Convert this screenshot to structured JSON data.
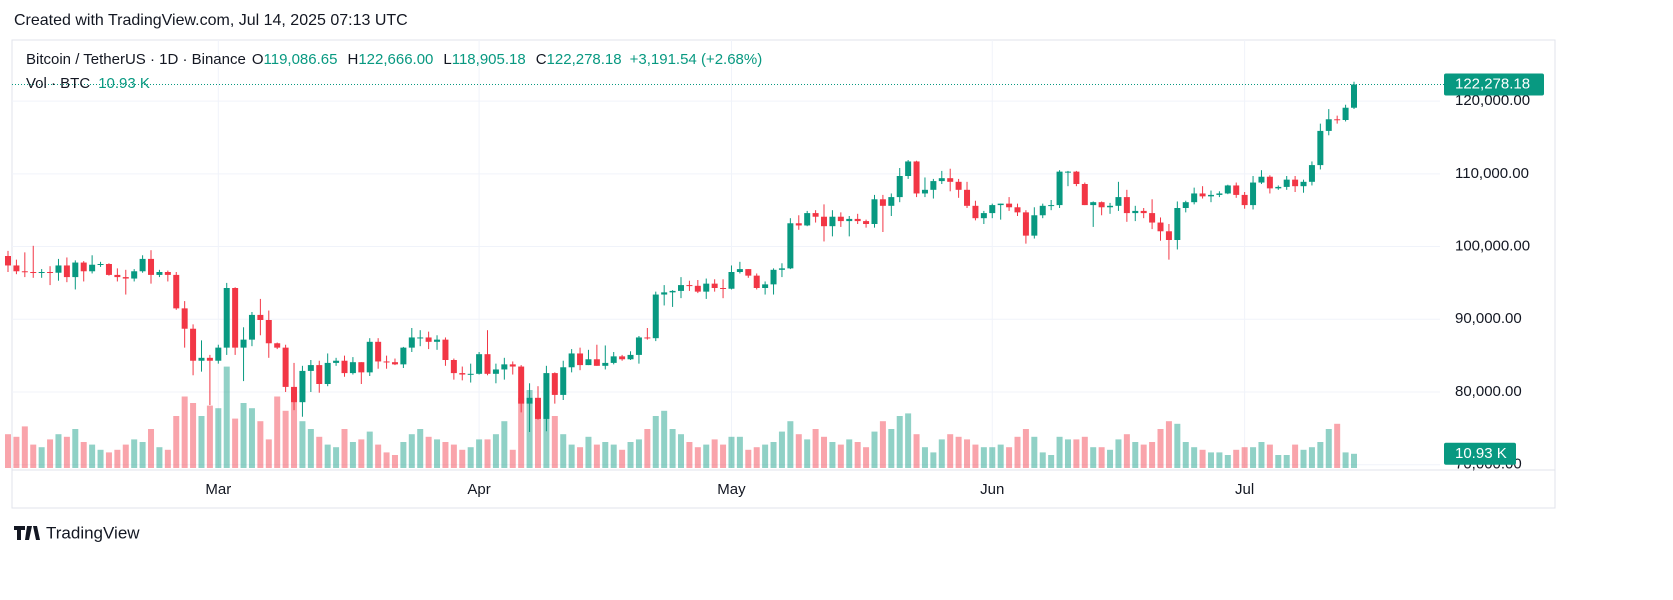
{
  "watermark": "Created with TradingView.com, Jul 14, 2025 07:13 UTC",
  "footer": "TradingView",
  "chart_data": {
    "type": "candlestick",
    "symbol": "Bitcoin / TetherUS · 1D · Binance",
    "ohlc_keys": [
      "O",
      "H",
      "L",
      "C"
    ],
    "last_candle_labels": [
      "119,086.65",
      "122,666.00",
      "118,905.18",
      "122,278.18"
    ],
    "change_label": "+3,191.54 (+2.68%)",
    "volume_title": "Vol · BTC",
    "volume_label": "10.93 K",
    "close_label": "122,278.18",
    "up_color": "#089981",
    "down_color": "#f23645",
    "ylim": [
      69550,
      128400
    ],
    "yticks": [
      {
        "value": 70000,
        "label": "70,000.00"
      },
      {
        "value": 80000,
        "label": "80,000.00"
      },
      {
        "value": 90000,
        "label": "90,000.00"
      },
      {
        "value": 100000,
        "label": "100,000.00"
      },
      {
        "value": 110000,
        "label": "110,000.00"
      },
      {
        "value": 120000,
        "label": "120,000.00"
      }
    ],
    "xticks": [
      {
        "value": 25,
        "label": "Mar"
      },
      {
        "value": 56,
        "label": "Apr"
      },
      {
        "value": 86,
        "label": "May"
      },
      {
        "value": 117,
        "label": "Jun"
      },
      {
        "value": 147,
        "label": "Jul"
      }
    ],
    "grid": true,
    "volume_lim": [
      0,
      100000
    ],
    "candles": [
      [
        98700,
        99400,
        96500,
        97400
      ],
      [
        97400,
        98200,
        96200,
        96600
      ],
      [
        96600,
        99200,
        95800,
        96500
      ],
      [
        96500,
        100100,
        95700,
        96400
      ],
      [
        96400,
        96900,
        95700,
        96500
      ],
      [
        96500,
        97300,
        94700,
        96400
      ],
      [
        96400,
        98300,
        95300,
        97400
      ],
      [
        97400,
        98500,
        95100,
        95800
      ],
      [
        95800,
        98100,
        94100,
        97800
      ],
      [
        97800,
        98000,
        95200,
        96600
      ],
      [
        96600,
        98800,
        96300,
        97500
      ],
      [
        97500,
        97900,
        97200,
        97600
      ],
      [
        97600,
        97700,
        96000,
        96100
      ],
      [
        96100,
        97000,
        95200,
        95800
      ],
      [
        95800,
        96800,
        93400,
        95600
      ],
      [
        95600,
        96900,
        95200,
        96600
      ],
      [
        96600,
        98800,
        96400,
        98300
      ],
      [
        98300,
        99500,
        94900,
        96100
      ],
      [
        96100,
        96800,
        95800,
        96500
      ],
      [
        96500,
        96700,
        95200,
        96100
      ],
      [
        96100,
        96500,
        91300,
        91500
      ],
      [
        91500,
        92500,
        86100,
        88700
      ],
      [
        88700,
        89300,
        82300,
        84300
      ],
      [
        84300,
        87100,
        82800,
        84700
      ],
      [
        84700,
        85100,
        78200,
        84300
      ],
      [
        84300,
        86500,
        83900,
        86100
      ],
      [
        86100,
        95000,
        85100,
        94300
      ],
      [
        94300,
        94400,
        85100,
        86100
      ],
      [
        86100,
        88900,
        81500,
        87200
      ],
      [
        87200,
        91000,
        86300,
        90600
      ],
      [
        90600,
        92800,
        87800,
        89900
      ],
      [
        89900,
        91200,
        84700,
        86700
      ],
      [
        86700,
        86800,
        85900,
        86100
      ],
      [
        86100,
        86500,
        80000,
        80700
      ],
      [
        80700,
        84000,
        77500,
        78600
      ],
      [
        78600,
        83600,
        76600,
        82900
      ],
      [
        82900,
        84400,
        80000,
        83700
      ],
      [
        83700,
        84300,
        79900,
        81100
      ],
      [
        81100,
        85300,
        80800,
        84000
      ],
      [
        84000,
        84700,
        83600,
        84300
      ],
      [
        84300,
        85000,
        82100,
        82600
      ],
      [
        82600,
        84800,
        82400,
        84100
      ],
      [
        84100,
        84100,
        81100,
        82700
      ],
      [
        82700,
        87400,
        82200,
        86900
      ],
      [
        86900,
        87400,
        83200,
        84200
      ],
      [
        84200,
        85000,
        83200,
        84100
      ],
      [
        84100,
        84600,
        83700,
        83800
      ],
      [
        83800,
        86200,
        83300,
        86100
      ],
      [
        86100,
        88800,
        85500,
        87500
      ],
      [
        87500,
        88500,
        86300,
        87500
      ],
      [
        87500,
        88300,
        85900,
        86900
      ],
      [
        86900,
        87800,
        85800,
        87200
      ],
      [
        87200,
        87500,
        83600,
        84400
      ],
      [
        84400,
        84600,
        81700,
        82600
      ],
      [
        82600,
        83500,
        81600,
        82400
      ],
      [
        82400,
        83900,
        81300,
        82500
      ],
      [
        82500,
        85500,
        82400,
        85200
      ],
      [
        85200,
        88500,
        82300,
        82500
      ],
      [
        82500,
        83900,
        81200,
        83100
      ],
      [
        83100,
        84700,
        81700,
        83800
      ],
      [
        83800,
        84200,
        82400,
        83500
      ],
      [
        83500,
        83700,
        77200,
        78400
      ],
      [
        78400,
        81200,
        74500,
        79200
      ],
      [
        79200,
        80800,
        76200,
        76300
      ],
      [
        76300,
        83600,
        74600,
        82600
      ],
      [
        82600,
        82700,
        78400,
        79600
      ],
      [
        79600,
        84300,
        78900,
        83400
      ],
      [
        83400,
        85900,
        82700,
        85300
      ],
      [
        85300,
        86100,
        83000,
        83700
      ],
      [
        83700,
        85800,
        83700,
        84500
      ],
      [
        84500,
        86500,
        83600,
        83600
      ],
      [
        83600,
        86400,
        83100,
        84000
      ],
      [
        84000,
        85500,
        83800,
        84900
      ],
      [
        84900,
        85100,
        84300,
        84500
      ],
      [
        84500,
        85600,
        84400,
        85100
      ],
      [
        85100,
        87700,
        83900,
        87500
      ],
      [
        87500,
        88800,
        87200,
        87400
      ],
      [
        87400,
        93800,
        87000,
        93400
      ],
      [
        93400,
        94700,
        91900,
        93700
      ],
      [
        93700,
        94000,
        91700,
        93900
      ],
      [
        93900,
        95800,
        92900,
        94700
      ],
      [
        94700,
        95300,
        93900,
        94600
      ],
      [
        94600,
        95400,
        93600,
        93800
      ],
      [
        93800,
        95600,
        92800,
        94900
      ],
      [
        94900,
        95500,
        93800,
        94300
      ],
      [
        94300,
        95500,
        92900,
        94200
      ],
      [
        94200,
        97400,
        94100,
        96500
      ],
      [
        96500,
        97900,
        96300,
        96900
      ],
      [
        96900,
        96900,
        95700,
        96000
      ],
      [
        96000,
        96300,
        94100,
        94300
      ],
      [
        94300,
        95200,
        93400,
        94800
      ],
      [
        94800,
        97000,
        93400,
        96800
      ],
      [
        96800,
        97700,
        95800,
        97000
      ],
      [
        97000,
        103900,
        96900,
        103200
      ],
      [
        103200,
        104300,
        102300,
        102900
      ],
      [
        102900,
        104900,
        102800,
        104600
      ],
      [
        104600,
        105000,
        103300,
        104100
      ],
      [
        104100,
        105800,
        100700,
        102800
      ],
      [
        102800,
        105000,
        101400,
        104100
      ],
      [
        104100,
        104700,
        102700,
        103500
      ],
      [
        103500,
        104200,
        101400,
        103800
      ],
      [
        103800,
        104500,
        103100,
        103500
      ],
      [
        103500,
        103700,
        102600,
        103100
      ],
      [
        103100,
        107100,
        102600,
        106500
      ],
      [
        106500,
        107100,
        102000,
        105600
      ],
      [
        105600,
        107300,
        104200,
        106800
      ],
      [
        106800,
        110800,
        106100,
        109700
      ],
      [
        109700,
        111900,
        109300,
        111700
      ],
      [
        111700,
        111800,
        106800,
        107300
      ],
      [
        107300,
        109500,
        106800,
        107800
      ],
      [
        107800,
        109300,
        106600,
        109000
      ],
      [
        109000,
        110400,
        108600,
        109400
      ],
      [
        109400,
        110700,
        107600,
        108900
      ],
      [
        108900,
        109300,
        106700,
        107800
      ],
      [
        107800,
        108900,
        105300,
        105600
      ],
      [
        105600,
        106300,
        103600,
        103900
      ],
      [
        103900,
        104900,
        103100,
        104600
      ],
      [
        104600,
        105900,
        103900,
        105700
      ],
      [
        105700,
        105900,
        103700,
        105900
      ],
      [
        105900,
        106800,
        104900,
        105400
      ],
      [
        105400,
        105900,
        104200,
        104700
      ],
      [
        104700,
        105000,
        100400,
        101500
      ],
      [
        101500,
        105400,
        101100,
        104300
      ],
      [
        104300,
        105900,
        103900,
        105600
      ],
      [
        105600,
        106400,
        105000,
        105700
      ],
      [
        105700,
        110500,
        105300,
        110300
      ],
      [
        110300,
        110400,
        108300,
        110300
      ],
      [
        110300,
        110400,
        108300,
        108600
      ],
      [
        108600,
        108800,
        105700,
        105700
      ],
      [
        105700,
        106200,
        102700,
        106100
      ],
      [
        106100,
        106200,
        104300,
        105400
      ],
      [
        105400,
        106000,
        104500,
        105600
      ],
      [
        105600,
        108900,
        104900,
        106800
      ],
      [
        106800,
        107800,
        103400,
        104600
      ],
      [
        104600,
        105600,
        103500,
        104900
      ],
      [
        104900,
        105300,
        103900,
        104600
      ],
      [
        104600,
        106500,
        102400,
        103300
      ],
      [
        103300,
        104000,
        100800,
        102100
      ],
      [
        102100,
        103100,
        98200,
        100900
      ],
      [
        100900,
        106200,
        99600,
        105300
      ],
      [
        105300,
        106300,
        104700,
        106100
      ],
      [
        106100,
        108100,
        105800,
        107300
      ],
      [
        107300,
        108300,
        106600,
        106900
      ],
      [
        106900,
        107700,
        106100,
        107100
      ],
      [
        107100,
        107600,
        106800,
        107300
      ],
      [
        107300,
        108500,
        107200,
        108400
      ],
      [
        108400,
        108800,
        106700,
        107100
      ],
      [
        107100,
        107500,
        105200,
        105700
      ],
      [
        105700,
        109700,
        105100,
        108800
      ],
      [
        108800,
        110500,
        108600,
        109600
      ],
      [
        109600,
        109800,
        107300,
        108000
      ],
      [
        108000,
        108400,
        107800,
        108200
      ],
      [
        108200,
        109700,
        107800,
        109200
      ],
      [
        109200,
        109700,
        107500,
        108300
      ],
      [
        108300,
        109200,
        107400,
        108900
      ],
      [
        108900,
        111700,
        108400,
        111200
      ],
      [
        111200,
        116900,
        110600,
        115900
      ],
      [
        115900,
        118900,
        115300,
        117500
      ],
      [
        117500,
        118000,
        116900,
        117400
      ],
      [
        117400,
        119500,
        117200,
        119086.65
      ],
      [
        119086.65,
        122666,
        118905.18,
        122278.18
      ]
    ],
    "volume": [
      26000,
      24000,
      32000,
      18000,
      16000,
      22000,
      26000,
      24000,
      30000,
      20000,
      18000,
      14000,
      12000,
      14000,
      18000,
      22000,
      20000,
      30000,
      16000,
      14000,
      40000,
      55000,
      50000,
      40000,
      48000,
      46000,
      78000,
      38000,
      50000,
      46000,
      36000,
      22000,
      55000,
      44000,
      58000,
      36000,
      30000,
      24000,
      18000,
      16000,
      30000,
      20000,
      22000,
      28000,
      18000,
      12000,
      10000,
      20000,
      26000,
      30000,
      24000,
      22000,
      20000,
      18000,
      14000,
      16000,
      22000,
      22000,
      26000,
      36000,
      14000,
      54000,
      60000,
      44000,
      60000,
      40000,
      26000,
      18000,
      16000,
      24000,
      18000,
      20000,
      18000,
      14000,
      20000,
      22000,
      30000,
      40000,
      44000,
      30000,
      26000,
      20000,
      16000,
      18000,
      22000,
      18000,
      24000,
      24000,
      14000,
      16000,
      18000,
      20000,
      28000,
      36000,
      26000,
      22000,
      30000,
      24000,
      20000,
      18000,
      22000,
      20000,
      16000,
      28000,
      36000,
      30000,
      40000,
      42000,
      26000,
      16000,
      12000,
      22000,
      26000,
      24000,
      22000,
      18000,
      16000,
      16000,
      18000,
      16000,
      24000,
      30000,
      24000,
      12000,
      10000,
      24000,
      22000,
      22000,
      24000,
      16000,
      16000,
      14000,
      22000,
      26000,
      20000,
      18000,
      20000,
      30000,
      36000,
      34000,
      20000,
      16000,
      14000,
      12000,
      12000,
      10000,
      14000,
      16000,
      16000,
      20000,
      18000,
      10000,
      10000,
      18000,
      14000,
      16000,
      20000,
      30000,
      34000,
      12000,
      10930
    ]
  }
}
